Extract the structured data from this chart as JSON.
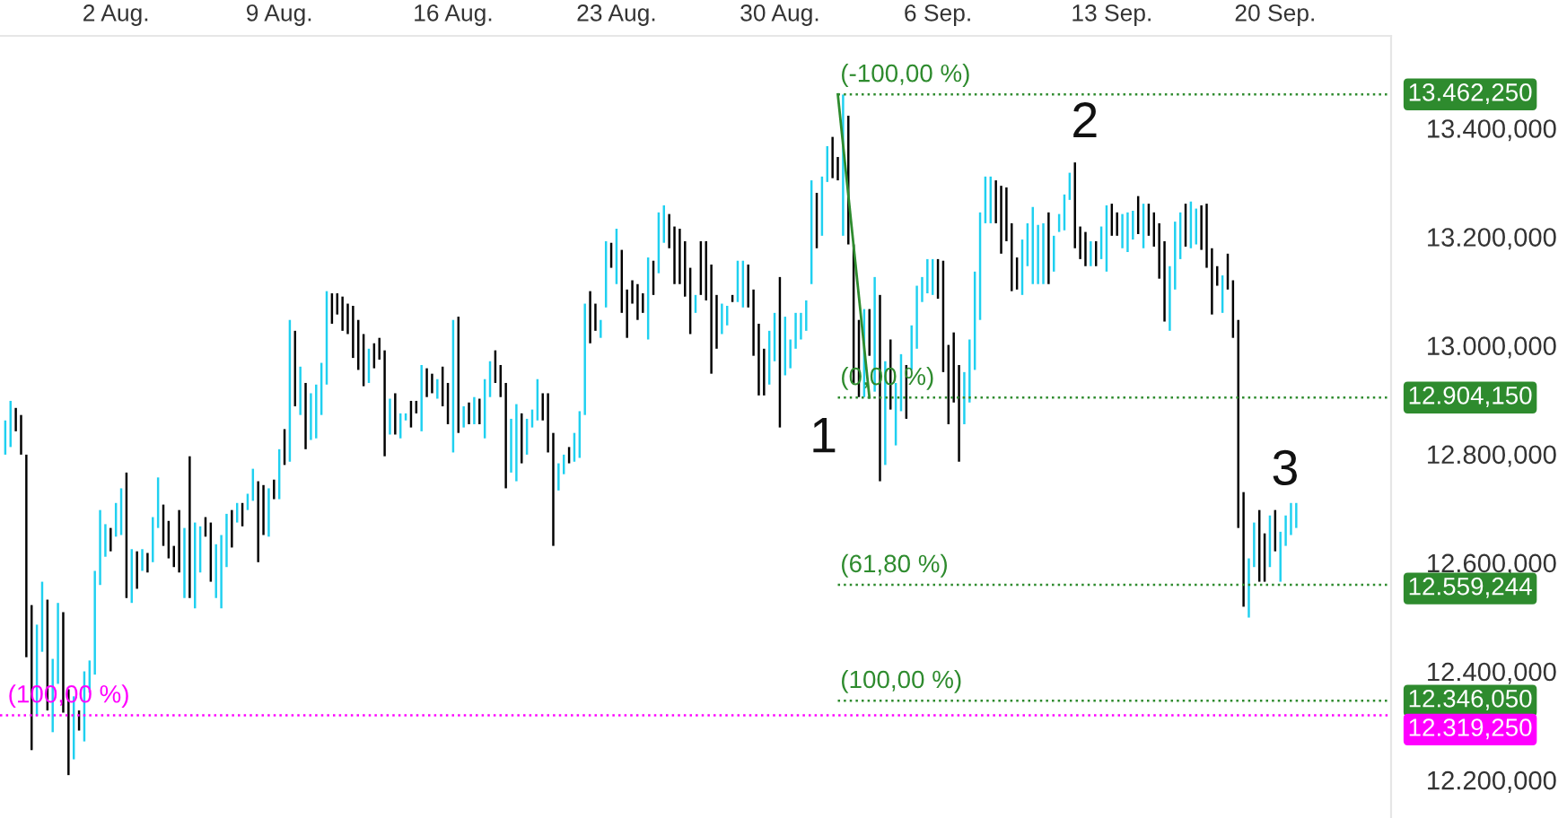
{
  "chart_data": {
    "type": "candlestick",
    "categories": [
      null,
      null,
      null,
      null,
      null,
      null,
      null,
      null,
      null,
      null,
      null,
      null,
      null,
      null,
      null,
      null,
      null,
      null,
      null,
      null,
      null,
      "2 Aug.",
      null,
      null,
      null,
      null,
      null,
      null,
      null,
      null,
      null,
      null,
      null,
      null,
      null,
      null,
      null,
      null,
      null,
      null,
      null,
      null,
      null,
      null,
      null,
      null,
      null,
      null,
      null,
      null,
      null,
      null,
      "9 Aug.",
      null,
      null,
      null,
      null,
      null,
      null,
      null,
      null,
      null,
      null,
      null,
      null,
      null,
      null,
      null,
      null,
      null,
      null,
      null,
      null,
      null,
      null,
      null,
      null,
      null,
      null,
      null,
      null,
      null,
      null,
      null,
      null,
      "16 Aug.",
      null,
      null,
      null,
      null,
      null,
      null,
      null,
      null,
      null,
      null,
      null,
      null,
      null,
      null,
      null,
      null,
      null,
      null,
      null,
      null,
      null,
      null,
      null,
      null,
      null,
      null,
      null,
      null,
      null,
      null,
      "23 Aug.",
      null,
      null,
      null,
      null,
      null,
      null,
      null,
      null,
      null,
      null,
      null,
      null,
      null,
      null,
      null,
      null,
      null,
      null,
      null,
      null,
      null,
      null,
      null,
      null,
      null,
      null,
      null,
      null,
      null,
      null,
      "30 Aug.",
      null,
      null,
      null,
      null,
      null,
      null,
      null,
      null,
      null,
      null,
      null,
      null,
      null,
      null,
      null,
      null,
      null,
      null,
      null,
      null,
      null,
      null,
      null,
      null,
      null,
      null,
      null,
      null,
      null,
      "6 Sep.",
      null,
      null,
      null,
      null,
      null,
      null,
      null,
      null,
      null,
      null,
      null,
      null,
      null,
      null,
      null,
      null,
      null,
      null,
      null,
      null,
      null,
      null,
      null,
      null,
      null,
      null,
      null,
      null,
      null,
      null,
      null,
      null,
      "13 Sep.",
      null,
      null,
      null,
      null,
      null,
      null,
      null,
      null,
      null,
      null,
      null,
      null,
      null,
      null,
      null,
      null,
      null,
      null,
      null,
      null,
      null,
      null,
      null,
      null,
      null,
      null,
      null,
      null,
      null,
      null,
      "20 Sep.",
      null,
      null,
      null,
      null
    ],
    "ohlc": [
      [
        12799,
        12862,
        12799,
        12862
      ],
      [
        12813,
        12898,
        12813,
        12898
      ],
      [
        12885,
        12885,
        12842,
        12842
      ],
      [
        12872,
        12872,
        12799,
        12799
      ],
      [
        12799,
        12799,
        12426,
        12426
      ],
      [
        12522,
        12522,
        12255,
        12255
      ],
      [
        12318,
        12486,
        12318,
        12486
      ],
      [
        12436,
        12565,
        12436,
        12565
      ],
      [
        12532,
        12532,
        12328,
        12328
      ],
      [
        12288,
        12423,
        12288,
        12423
      ],
      [
        12377,
        12526,
        12377,
        12526
      ],
      [
        12509,
        12509,
        12324,
        12324
      ],
      [
        12367,
        12367,
        12209,
        12209
      ],
      [
        12238,
        12354,
        12238,
        12354
      ],
      [
        12328,
        12328,
        12291,
        12291
      ],
      [
        12271,
        12400,
        12271,
        12400
      ],
      [
        12361,
        12420,
        12361,
        12420
      ],
      [
        12394,
        12585,
        12394,
        12585
      ],
      [
        12559,
        12697,
        12559,
        12697
      ],
      [
        12611,
        12671,
        12611,
        12671
      ],
      [
        12664,
        12664,
        12621,
        12621
      ],
      [
        12648,
        12710,
        12648,
        12710
      ],
      [
        12651,
        12737,
        12651,
        12737
      ],
      [
        12766,
        12766,
        12535,
        12535
      ],
      [
        12526,
        12625,
        12526,
        12625
      ],
      [
        12621,
        12621,
        12552,
        12552
      ],
      [
        12585,
        12625,
        12585,
        12625
      ],
      [
        12618,
        12618,
        12582,
        12582
      ],
      [
        12601,
        12684,
        12601,
        12684
      ],
      [
        12664,
        12757,
        12664,
        12757
      ],
      [
        12707,
        12707,
        12631,
        12631
      ],
      [
        12677,
        12677,
        12608,
        12608
      ],
      [
        12631,
        12631,
        12592,
        12592
      ],
      [
        12697,
        12697,
        12582,
        12582
      ],
      [
        12535,
        12664,
        12535,
        12664
      ],
      [
        12796,
        12796,
        12535,
        12535
      ],
      [
        12516,
        12674,
        12516,
        12674
      ],
      [
        12582,
        12667,
        12582,
        12667
      ],
      [
        12684,
        12684,
        12648,
        12648
      ],
      [
        12674,
        12674,
        12565,
        12565
      ],
      [
        12535,
        12634,
        12535,
        12634
      ],
      [
        12516,
        12651,
        12516,
        12651
      ],
      [
        12592,
        12690,
        12592,
        12690
      ],
      [
        12697,
        12697,
        12628,
        12628
      ],
      [
        12674,
        12710,
        12674,
        12710
      ],
      [
        12710,
        12710,
        12667,
        12667
      ],
      [
        12697,
        12727,
        12697,
        12727
      ],
      [
        12714,
        12773,
        12714,
        12773
      ],
      [
        12750,
        12750,
        12601,
        12601
      ],
      [
        12743,
        12743,
        12651,
        12651
      ],
      [
        12648,
        12737,
        12648,
        12737
      ],
      [
        12753,
        12753,
        12717,
        12717
      ],
      [
        12717,
        12809,
        12717,
        12809
      ],
      [
        12846,
        12846,
        12780,
        12780
      ],
      [
        12786,
        13047,
        12786,
        13047
      ],
      [
        13027,
        13027,
        12888,
        12888
      ],
      [
        12872,
        12961,
        12872,
        12961
      ],
      [
        12931,
        12931,
        12809,
        12809
      ],
      [
        12826,
        12912,
        12826,
        12912
      ],
      [
        12829,
        12928,
        12829,
        12928
      ],
      [
        12872,
        12968,
        12872,
        12968
      ],
      [
        12928,
        13100,
        12928,
        13100
      ],
      [
        13096,
        13096,
        13040,
        13040
      ],
      [
        13096,
        13096,
        13057,
        13057
      ],
      [
        13090,
        13090,
        13027,
        13027
      ],
      [
        13077,
        13077,
        13021,
        13021
      ],
      [
        13073,
        13073,
        12977,
        12977
      ],
      [
        13047,
        13047,
        12955,
        12955
      ],
      [
        13021,
        13021,
        12925,
        12925
      ],
      [
        12931,
        12994,
        12931,
        12994
      ],
      [
        13004,
        13004,
        12958,
        12958
      ],
      [
        13014,
        13014,
        12974,
        12974
      ],
      [
        12991,
        12991,
        12796,
        12796
      ],
      [
        12836,
        12902,
        12836,
        12902
      ],
      [
        12912,
        12912,
        12836,
        12836
      ],
      [
        12829,
        12875,
        12829,
        12875
      ],
      [
        12862,
        12875,
        12862,
        12875
      ],
      [
        12898,
        12898,
        12849,
        12849
      ],
      [
        12898,
        12898,
        12875,
        12875
      ],
      [
        12842,
        12964,
        12842,
        12964
      ],
      [
        12958,
        12958,
        12905,
        12905
      ],
      [
        12948,
        12948,
        12912,
        12912
      ],
      [
        12902,
        12938,
        12902,
        12938
      ],
      [
        12961,
        12961,
        12888,
        12888
      ],
      [
        12931,
        12931,
        12855,
        12855
      ],
      [
        12803,
        13047,
        12803,
        13047
      ],
      [
        13053,
        13053,
        12839,
        12839
      ],
      [
        12849,
        12888,
        12849,
        12888
      ],
      [
        12895,
        12895,
        12855,
        12855
      ],
      [
        12855,
        12905,
        12855,
        12905
      ],
      [
        12902,
        12902,
        12855,
        12855
      ],
      [
        12829,
        12938,
        12829,
        12938
      ],
      [
        12905,
        12971,
        12905,
        12971
      ],
      [
        12991,
        12991,
        12931,
        12931
      ],
      [
        12964,
        12964,
        12905,
        12905
      ],
      [
        12931,
        12931,
        12737,
        12737
      ],
      [
        12766,
        12865,
        12766,
        12865
      ],
      [
        12750,
        12892,
        12750,
        12892
      ],
      [
        12875,
        12875,
        12783,
        12783
      ],
      [
        12799,
        12865,
        12799,
        12865
      ],
      [
        12849,
        12882,
        12849,
        12882
      ],
      [
        12862,
        12938,
        12862,
        12938
      ],
      [
        12912,
        12912,
        12862,
        12862
      ],
      [
        12912,
        12912,
        12803,
        12803
      ],
      [
        12839,
        12839,
        12631,
        12631
      ],
      [
        12733,
        12783,
        12733,
        12783
      ],
      [
        12763,
        12799,
        12763,
        12799
      ],
      [
        12813,
        12813,
        12783,
        12783
      ],
      [
        12786,
        12839,
        12786,
        12839
      ],
      [
        12793,
        12879,
        12793,
        12879
      ],
      [
        12872,
        13077,
        12872,
        13077
      ],
      [
        13100,
        13100,
        13004,
        13004
      ],
      [
        13077,
        13077,
        13027,
        13027
      ],
      [
        13014,
        13047,
        13014,
        13047
      ],
      [
        13070,
        13192,
        13070,
        13192
      ],
      [
        13189,
        13189,
        13143,
        13143
      ],
      [
        13113,
        13215,
        13113,
        13215
      ],
      [
        13176,
        13176,
        13060,
        13060
      ],
      [
        13103,
        13103,
        13014,
        13014
      ],
      [
        13120,
        13120,
        13077,
        13077
      ],
      [
        13113,
        13113,
        13047,
        13047
      ],
      [
        13096,
        13096,
        13060,
        13060
      ],
      [
        13011,
        13162,
        13011,
        13162
      ],
      [
        13156,
        13156,
        13093,
        13093
      ],
      [
        13133,
        13245,
        13133,
        13245
      ],
      [
        13189,
        13258,
        13189,
        13258
      ],
      [
        13242,
        13242,
        13179,
        13179
      ],
      [
        13219,
        13219,
        13113,
        13113
      ],
      [
        13215,
        13215,
        13113,
        13113
      ],
      [
        13192,
        13192,
        13090,
        13090
      ],
      [
        13143,
        13143,
        13021,
        13021
      ],
      [
        13060,
        13093,
        13060,
        13093
      ],
      [
        13192,
        13192,
        13093,
        13093
      ],
      [
        13192,
        13192,
        13083,
        13083
      ],
      [
        13149,
        13149,
        12948,
        12948
      ],
      [
        13093,
        13093,
        12994,
        12994
      ],
      [
        13021,
        13077,
        13021,
        13077
      ],
      [
        13037,
        13073,
        13037,
        13073
      ],
      [
        13093,
        13093,
        13080,
        13080
      ],
      [
        13080,
        13156,
        13080,
        13156
      ],
      [
        13070,
        13156,
        13070,
        13156
      ],
      [
        13149,
        13149,
        13070,
        13070
      ],
      [
        13103,
        13103,
        12981,
        12981
      ],
      [
        13040,
        13040,
        12908,
        12908
      ],
      [
        12994,
        12994,
        12908,
        12908
      ],
      [
        12928,
        13027,
        12928,
        13027
      ],
      [
        12971,
        13060,
        12971,
        13060
      ],
      [
        13126,
        13126,
        12849,
        12849
      ],
      [
        12945,
        13053,
        12945,
        13053
      ],
      [
        12958,
        13011,
        12958,
        13011
      ],
      [
        12994,
        13060,
        12994,
        13060
      ],
      [
        13011,
        13060,
        13011,
        13060
      ],
      [
        13027,
        13083,
        13027,
        13083
      ],
      [
        13113,
        13304,
        13113,
        13304
      ],
      [
        13281,
        13281,
        13179,
        13179
      ],
      [
        13202,
        13311,
        13202,
        13311
      ],
      [
        13301,
        13367,
        13301,
        13367
      ],
      [
        13384,
        13384,
        13308,
        13308
      ],
      [
        13347,
        13347,
        13304,
        13304
      ],
      [
        13202,
        13462,
        13202,
        13462
      ],
      [
        13423,
        13423,
        13186,
        13186
      ],
      [
        13186,
        13186,
        12931,
        12931
      ],
      [
        13047,
        13047,
        12905,
        12905
      ],
      [
        12905,
        13067,
        12905,
        13067
      ],
      [
        13067,
        13067,
        12981,
        12981
      ],
      [
        12915,
        13126,
        12915,
        13126
      ],
      [
        13093,
        13093,
        12750,
        12750
      ],
      [
        12780,
        12971,
        12780,
        12971
      ],
      [
        13011,
        13011,
        12882,
        12882
      ],
      [
        12816,
        12931,
        12816,
        12931
      ],
      [
        12879,
        12984,
        12879,
        12984
      ],
      [
        12964,
        12964,
        12865,
        12865
      ],
      [
        12955,
        13037,
        12955,
        13037
      ],
      [
        12994,
        13110,
        12994,
        13110
      ],
      [
        13080,
        13126,
        13080,
        13126
      ],
      [
        13096,
        13159,
        13096,
        13159
      ],
      [
        13093,
        13159,
        13093,
        13159
      ],
      [
        13159,
        13159,
        13086,
        13086
      ],
      [
        13156,
        13156,
        12951,
        12951
      ],
      [
        13001,
        13001,
        12855,
        12855
      ],
      [
        13024,
        13024,
        12895,
        12895
      ],
      [
        12964,
        12964,
        12786,
        12786
      ],
      [
        12855,
        12951,
        12855,
        12951
      ],
      [
        12895,
        13011,
        12895,
        13011
      ],
      [
        12955,
        13136,
        12955,
        13136
      ],
      [
        13047,
        13245,
        13047,
        13245
      ],
      [
        13225,
        13311,
        13225,
        13311
      ],
      [
        13225,
        13311,
        13225,
        13311
      ],
      [
        13304,
        13304,
        13225,
        13225
      ],
      [
        13294,
        13294,
        13169,
        13169
      ],
      [
        13291,
        13291,
        13192,
        13192
      ],
      [
        13225,
        13225,
        13100,
        13100
      ],
      [
        13162,
        13162,
        13103,
        13103
      ],
      [
        13093,
        13195,
        13093,
        13195
      ],
      [
        13146,
        13225,
        13146,
        13225
      ],
      [
        13113,
        13255,
        13113,
        13255
      ],
      [
        13113,
        13222,
        13113,
        13222
      ],
      [
        13113,
        13225,
        13113,
        13225
      ],
      [
        13245,
        13245,
        13113,
        13113
      ],
      [
        13136,
        13202,
        13136,
        13202
      ],
      [
        13209,
        13242,
        13209,
        13242
      ],
      [
        13212,
        13278,
        13212,
        13278
      ],
      [
        13268,
        13318,
        13268,
        13318
      ],
      [
        13337,
        13337,
        13179,
        13179
      ],
      [
        13219,
        13219,
        13159,
        13159
      ],
      [
        13209,
        13209,
        13146,
        13146
      ],
      [
        13146,
        13192,
        13146,
        13192
      ],
      [
        13192,
        13192,
        13146,
        13146
      ],
      [
        13159,
        13219,
        13159,
        13219
      ],
      [
        13136,
        13258,
        13136,
        13258
      ],
      [
        13261,
        13261,
        13202,
        13202
      ],
      [
        13245,
        13245,
        13202,
        13202
      ],
      [
        13179,
        13242,
        13179,
        13242
      ],
      [
        13172,
        13245,
        13172,
        13245
      ],
      [
        13195,
        13248,
        13195,
        13248
      ],
      [
        13275,
        13275,
        13205,
        13205
      ],
      [
        13179,
        13261,
        13179,
        13261
      ],
      [
        13261,
        13261,
        13202,
        13202
      ],
      [
        13245,
        13245,
        13182,
        13182
      ],
      [
        13225,
        13225,
        13123,
        13123
      ],
      [
        13192,
        13192,
        13044,
        13044
      ],
      [
        13027,
        13146,
        13027,
        13146
      ],
      [
        13103,
        13228,
        13103,
        13228
      ],
      [
        13159,
        13245,
        13159,
        13245
      ],
      [
        13261,
        13261,
        13182,
        13182
      ],
      [
        13179,
        13265,
        13179,
        13265
      ],
      [
        13186,
        13252,
        13186,
        13252
      ],
      [
        13258,
        13258,
        13176,
        13176
      ],
      [
        13261,
        13261,
        13143,
        13143
      ],
      [
        13179,
        13179,
        13057,
        13057
      ],
      [
        13146,
        13146,
        13110,
        13110
      ],
      [
        13060,
        13129,
        13060,
        13129
      ],
      [
        13169,
        13169,
        13103,
        13103
      ],
      [
        13120,
        13120,
        13014,
        13014
      ],
      [
        13047,
        13047,
        12664,
        12664
      ],
      [
        12730,
        12730,
        12519,
        12519
      ],
      [
        12499,
        12608,
        12499,
        12608
      ],
      [
        12592,
        12674,
        12592,
        12674
      ],
      [
        12697,
        12697,
        12565,
        12565
      ],
      [
        12654,
        12654,
        12565,
        12565
      ],
      [
        12592,
        12687,
        12592,
        12687
      ],
      [
        12697,
        12697,
        12621,
        12621
      ],
      [
        12565,
        12657,
        12565,
        12657
      ],
      [
        12631,
        12687,
        12631,
        12687
      ],
      [
        12651,
        12710,
        12651,
        12710
      ],
      [
        12664,
        12710,
        12664,
        12710
      ]
    ],
    "series": [
      {
        "type": "line",
        "color": "#2e8b2e",
        "values": [
          null,
          null,
          null,
          null,
          null,
          null,
          null,
          null,
          null,
          null,
          null,
          null,
          null,
          null,
          null,
          null,
          null,
          null,
          null,
          null,
          null,
          null,
          null,
          null,
          null,
          null,
          null,
          null,
          null,
          null,
          null,
          null,
          null,
          null,
          null,
          null,
          null,
          null,
          null,
          null,
          null,
          null,
          null,
          null,
          null,
          null,
          null,
          null,
          null,
          null,
          null,
          null,
          null,
          null,
          null,
          null,
          null,
          null,
          null,
          null,
          null,
          null,
          null,
          null,
          null,
          null,
          null,
          null,
          null,
          null,
          null,
          null,
          null,
          null,
          null,
          null,
          null,
          null,
          null,
          null,
          null,
          null,
          null,
          null,
          null,
          null,
          null,
          null,
          null,
          null,
          null,
          null,
          null,
          null,
          null,
          null,
          null,
          null,
          null,
          null,
          null,
          null,
          null,
          null,
          null,
          null,
          null,
          null,
          null,
          null,
          null,
          null,
          null,
          null,
          null,
          null,
          null,
          null,
          null,
          null,
          null,
          null,
          null,
          null,
          null,
          null,
          null,
          null,
          null,
          null,
          null,
          null,
          null,
          null,
          null,
          null,
          null,
          null,
          null,
          null,
          null,
          null,
          null,
          null,
          null,
          null,
          null,
          null,
          null,
          null,
          null,
          null,
          null,
          null,
          null,
          null,
          null,
          null,
          13462.25,
          null,
          null,
          null,
          null,
          null,
          12904.15,
          null,
          null,
          null,
          null,
          null,
          null,
          null,
          null,
          null,
          null,
          null,
          null,
          null,
          null,
          null,
          null,
          null,
          null,
          null,
          null,
          null,
          null,
          null,
          null,
          null,
          null,
          null,
          null,
          null,
          null,
          null,
          null,
          null,
          null,
          null,
          null,
          null,
          null,
          null,
          null,
          null,
          null,
          null,
          null,
          null,
          null,
          null,
          null,
          null,
          null,
          null,
          null,
          null,
          null,
          null,
          null,
          null,
          null,
          null,
          null,
          null,
          null,
          null,
          null,
          null,
          null,
          null,
          null,
          null,
          null,
          null,
          null,
          null,
          null,
          null,
          null,
          null,
          null,
          null,
          null,
          null
        ]
      }
    ],
    "ylim": [
      12130,
      13570
    ],
    "yticks": [
      {
        "value": 12200,
        "label": "12.200,000"
      },
      {
        "value": 12400,
        "label": "12.400,000"
      },
      {
        "value": 12600,
        "label": "12.600,000"
      },
      {
        "value": 12800,
        "label": "12.800,000"
      },
      {
        "value": 13000,
        "label": "13.000,000"
      },
      {
        "value": 13200,
        "label": "13.200,000"
      },
      {
        "value": 13400,
        "label": "13.400,000"
      }
    ],
    "ref_lines": [
      {
        "axis": "y",
        "value": 13462.25,
        "label": "13.462,250",
        "color": "#2e8b2e",
        "line_style": "dotted"
      },
      {
        "axis": "y",
        "value": 12904.15,
        "label": "12.904,150",
        "color": "#2e8b2e",
        "line_style": "dotted"
      },
      {
        "axis": "y",
        "value": 12559.244,
        "label": "12.559,244",
        "color": "#2e8b2e",
        "line_style": "dotted"
      },
      {
        "axis": "y",
        "value": 12346.05,
        "label": "12.346,050",
        "color": "#2e8b2e",
        "line_style": "dotted"
      },
      {
        "axis": "y",
        "value": 12319.25,
        "label": "12.319,250",
        "color": "#ff00ff",
        "line_style": "dotted"
      }
    ],
    "annotations": [
      {
        "text": "(-100,00 %)",
        "y": 13462.25
      },
      {
        "text": "(0,00 %)",
        "y": 12904.15
      },
      {
        "text": "(61,80 %)",
        "y": 12559.244
      },
      {
        "text": "(100,00 %)",
        "y": 12346.05
      },
      {
        "text": "(100,00 %)",
        "y": 12319.25
      },
      "1",
      {
        "text": "2",
        "y": 13337
      },
      {
        "text": "3",
        "y": 12697
      }
    ],
    "colors": [
      "#1fd0f0",
      "#1fd0f0",
      "#000000",
      "#000000",
      "#000000",
      "#000000",
      "#1fd0f0",
      "#1fd0f0",
      "#000000",
      "#1fd0f0",
      "#1fd0f0",
      "#000000",
      "#000000",
      "#1fd0f0",
      "#000000",
      "#1fd0f0",
      "#1fd0f0",
      "#1fd0f0",
      "#1fd0f0",
      "#1fd0f0",
      "#000000",
      "#1fd0f0",
      "#1fd0f0",
      "#000000",
      "#1fd0f0",
      "#000000",
      "#1fd0f0",
      "#000000",
      "#1fd0f0",
      "#1fd0f0",
      "#000000",
      "#000000",
      "#000000",
      "#000000",
      "#1fd0f0",
      "#000000",
      "#1fd0f0",
      "#1fd0f0",
      "#000000",
      "#000000",
      "#1fd0f0",
      "#1fd0f0",
      "#1fd0f0",
      "#000000",
      "#1fd0f0",
      "#000000",
      "#1fd0f0",
      "#1fd0f0",
      "#000000",
      "#000000",
      "#1fd0f0",
      "#000000",
      "#1fd0f0",
      "#000000",
      "#1fd0f0",
      "#000000",
      "#1fd0f0",
      "#000000",
      "#1fd0f0",
      "#1fd0f0",
      "#1fd0f0",
      "#1fd0f0",
      "#000000",
      "#000000",
      "#000000",
      "#000000",
      "#000000",
      "#000000",
      "#000000",
      "#1fd0f0",
      "#000000",
      "#000000",
      "#000000",
      "#1fd0f0",
      "#000000",
      "#1fd0f0",
      "#1fd0f0",
      "#000000",
      "#000000",
      "#1fd0f0",
      "#000000",
      "#000000",
      "#1fd0f0",
      "#000000",
      "#000000",
      "#1fd0f0",
      "#000000",
      "#1fd0f0",
      "#000000",
      "#1fd0f0",
      "#000000",
      "#1fd0f0",
      "#1fd0f0",
      "#000000",
      "#000000",
      "#000000",
      "#1fd0f0",
      "#1fd0f0",
      "#000000",
      "#1fd0f0",
      "#1fd0f0",
      "#1fd0f0",
      "#000000",
      "#000000",
      "#000000",
      "#1fd0f0",
      "#1fd0f0",
      "#000000",
      "#1fd0f0",
      "#1fd0f0",
      "#1fd0f0",
      "#000000",
      "#000000",
      "#1fd0f0",
      "#1fd0f0",
      "#000000",
      "#1fd0f0",
      "#000000",
      "#000000",
      "#000000",
      "#000000",
      "#000000",
      "#1fd0f0",
      "#000000",
      "#1fd0f0",
      "#1fd0f0",
      "#000000",
      "#000000",
      "#000000",
      "#000000",
      "#000000",
      "#1fd0f0",
      "#000000",
      "#000000",
      "#000000",
      "#000000",
      "#1fd0f0",
      "#1fd0f0",
      "#000000",
      "#1fd0f0",
      "#1fd0f0",
      "#000000",
      "#000000",
      "#000000",
      "#000000",
      "#1fd0f0",
      "#1fd0f0",
      "#000000",
      "#1fd0f0",
      "#1fd0f0",
      "#1fd0f0",
      "#1fd0f0",
      "#1fd0f0",
      "#1fd0f0",
      "#000000",
      "#1fd0f0",
      "#1fd0f0",
      "#000000",
      "#000000",
      "#1fd0f0",
      "#000000",
      "#000000",
      "#000000",
      "#1fd0f0",
      "#000000",
      "#1fd0f0",
      "#000000",
      "#1fd0f0",
      "#000000",
      "#1fd0f0",
      "#1fd0f0",
      "#000000",
      "#1fd0f0",
      "#1fd0f0",
      "#1fd0f0",
      "#1fd0f0",
      "#1fd0f0",
      "#000000",
      "#000000",
      "#000000",
      "#000000",
      "#000000",
      "#1fd0f0",
      "#1fd0f0",
      "#1fd0f0",
      "#1fd0f0",
      "#1fd0f0",
      "#1fd0f0",
      "#000000",
      "#000000",
      "#000000",
      "#000000",
      "#000000",
      "#1fd0f0",
      "#1fd0f0",
      "#1fd0f0",
      "#1fd0f0",
      "#1fd0f0",
      "#000000",
      "#1fd0f0",
      "#1fd0f0",
      "#1fd0f0",
      "#1fd0f0",
      "#000000",
      "#000000",
      "#000000",
      "#1fd0f0",
      "#000000",
      "#1fd0f0",
      "#1fd0f0",
      "#000000",
      "#000000",
      "#1fd0f0",
      "#1fd0f0",
      "#1fd0f0",
      "#000000",
      "#1fd0f0",
      "#000000",
      "#000000",
      "#000000",
      "#000000",
      "#1fd0f0",
      "#1fd0f0",
      "#1fd0f0",
      "#000000",
      "#1fd0f0",
      "#1fd0f0",
      "#000000",
      "#000000",
      "#000000",
      "#000000",
      "#1fd0f0",
      "#000000",
      "#000000",
      "#000000",
      "#000000",
      "#1fd0f0",
      "#1fd0f0",
      "#000000",
      "#000000",
      "#1fd0f0",
      "#000000",
      "#1fd0f0",
      "#1fd0f0",
      "#1fd0f0",
      "#1fd0f0"
    ]
  }
}
